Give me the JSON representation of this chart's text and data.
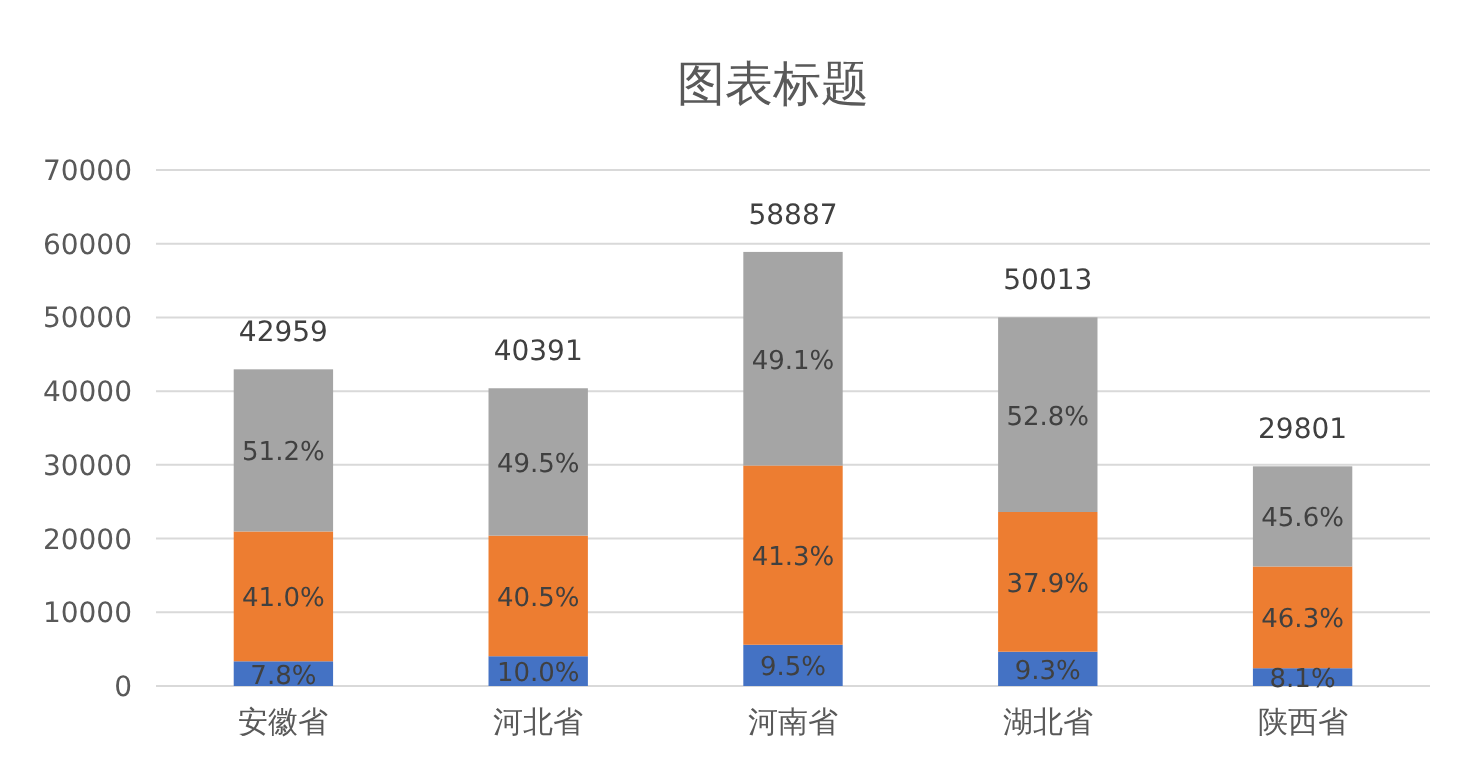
{
  "chart_data": {
    "type": "bar",
    "title": "图表标题",
    "stacked": true,
    "grid": "y",
    "categories": [
      "安徽省",
      "河北省",
      "河南省",
      "湖北省",
      "陕西省"
    ],
    "ylim": [
      0,
      70000
    ],
    "yticks": [
      0,
      10000,
      20000,
      30000,
      40000,
      50000,
      60000,
      70000
    ],
    "series": [
      {
        "color": "#4472c4",
        "values": [
          3351,
          4039,
          5594,
          4651,
          2414
        ]
      },
      {
        "color": "#ed7d31",
        "values": [
          17613,
          16358,
          24320,
          18955,
          13798
        ]
      },
      {
        "color": "#a5a5a5",
        "values": [
          21995,
          19994,
          28973,
          26407,
          13589
        ]
      }
    ],
    "annotations": [
      "7.8%",
      "10.0%",
      "9.5%",
      "9.3%",
      "8.1%",
      "41.0%",
      "40.5%",
      "41.3%",
      "37.9%",
      "46.3%",
      "51.2%",
      "49.5%",
      "49.1%",
      "52.8%",
      "45.6%"
    ],
    "totals": [
      "42959",
      "40391",
      "58887",
      "50013",
      "29801"
    ]
  }
}
